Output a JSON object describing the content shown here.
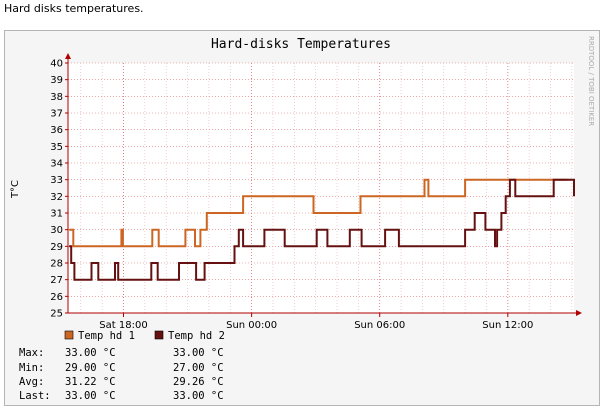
{
  "page": {
    "caption": "Hard disks temperatures."
  },
  "chart_data": {
    "type": "line",
    "title": "Hard-disks Temperatures",
    "ylabel": "T°C",
    "watermark": "RRDTOOL / TOBI OETIKER",
    "ylim": [
      25,
      40
    ],
    "yticks": [
      "25",
      "26",
      "27",
      "28",
      "29",
      "30",
      "31",
      "32",
      "33",
      "34",
      "35",
      "36",
      "37",
      "38",
      "39",
      "40"
    ],
    "xlim": [
      15.4,
      39.1
    ],
    "xticks": [
      {
        "x": 18,
        "label": "Sat 18:00"
      },
      {
        "x": 24,
        "label": "Sun 00:00"
      },
      {
        "x": 30,
        "label": "Sun 06:00"
      },
      {
        "x": 36,
        "label": "Sun 12:00"
      }
    ],
    "grid": true,
    "legend_position": "bottom",
    "colors": {
      "hd1": "#cc6622",
      "hd2": "#661111",
      "grid_minor": "#e8b0b0",
      "grid_major": "#e07070",
      "axis": "#b00000"
    },
    "series": [
      {
        "name": "Temp hd 1",
        "color": "#cc6622",
        "points": [
          [
            15.45,
            30
          ],
          [
            15.65,
            30
          ],
          [
            15.65,
            29
          ],
          [
            17.9,
            29
          ],
          [
            17.9,
            30
          ],
          [
            17.97,
            30
          ],
          [
            17.97,
            29
          ],
          [
            19.35,
            29
          ],
          [
            19.35,
            30
          ],
          [
            19.65,
            30
          ],
          [
            19.65,
            29
          ],
          [
            20.9,
            29
          ],
          [
            20.9,
            30
          ],
          [
            21.35,
            30
          ],
          [
            21.35,
            29
          ],
          [
            21.6,
            29
          ],
          [
            21.6,
            30
          ],
          [
            21.9,
            30
          ],
          [
            21.9,
            31
          ],
          [
            23.6,
            31
          ],
          [
            23.6,
            32
          ],
          [
            26.9,
            32
          ],
          [
            26.9,
            31
          ],
          [
            29.1,
            31
          ],
          [
            29.1,
            32
          ],
          [
            32.1,
            32
          ],
          [
            32.1,
            33
          ],
          [
            32.28,
            33
          ],
          [
            32.28,
            32
          ],
          [
            34.0,
            32
          ],
          [
            34.0,
            33
          ],
          [
            38.8,
            33
          ]
        ]
      },
      {
        "name": "Temp hd 2",
        "color": "#661111",
        "points": [
          [
            15.45,
            29
          ],
          [
            15.55,
            29
          ],
          [
            15.55,
            28
          ],
          [
            15.7,
            28
          ],
          [
            15.7,
            27
          ],
          [
            16.5,
            27
          ],
          [
            16.5,
            28
          ],
          [
            16.82,
            28
          ],
          [
            16.82,
            27
          ],
          [
            17.6,
            27
          ],
          [
            17.6,
            28
          ],
          [
            17.75,
            28
          ],
          [
            17.75,
            27
          ],
          [
            19.3,
            27
          ],
          [
            19.3,
            28
          ],
          [
            19.6,
            28
          ],
          [
            19.6,
            27
          ],
          [
            20.6,
            27
          ],
          [
            20.6,
            28
          ],
          [
            21.4,
            28
          ],
          [
            21.4,
            27
          ],
          [
            21.8,
            27
          ],
          [
            21.8,
            28
          ],
          [
            23.2,
            28
          ],
          [
            23.2,
            29
          ],
          [
            23.4,
            29
          ],
          [
            23.4,
            30
          ],
          [
            23.6,
            30
          ],
          [
            23.6,
            29
          ],
          [
            24.6,
            29
          ],
          [
            24.6,
            30
          ],
          [
            25.55,
            30
          ],
          [
            25.55,
            29
          ],
          [
            27.05,
            29
          ],
          [
            27.05,
            30
          ],
          [
            27.55,
            30
          ],
          [
            27.55,
            29
          ],
          [
            28.6,
            29
          ],
          [
            28.6,
            30
          ],
          [
            29.15,
            30
          ],
          [
            29.15,
            29
          ],
          [
            30.25,
            29
          ],
          [
            30.25,
            30
          ],
          [
            30.9,
            30
          ],
          [
            30.9,
            29
          ],
          [
            34.0,
            29
          ],
          [
            34.0,
            30
          ],
          [
            34.45,
            30
          ],
          [
            34.45,
            31
          ],
          [
            34.95,
            31
          ],
          [
            34.95,
            30
          ],
          [
            35.4,
            30
          ],
          [
            35.4,
            29
          ],
          [
            35.5,
            29
          ],
          [
            35.5,
            30
          ],
          [
            35.7,
            30
          ],
          [
            35.7,
            31
          ],
          [
            35.9,
            31
          ],
          [
            35.9,
            32
          ],
          [
            36.1,
            32
          ],
          [
            36.1,
            33
          ],
          [
            36.35,
            33
          ],
          [
            36.35,
            32
          ],
          [
            38.15,
            32
          ],
          [
            38.15,
            33
          ],
          [
            39.45,
            33
          ],
          [
            39.45,
            32
          ],
          [
            39.7,
            32
          ],
          [
            39.7,
            33
          ],
          [
            39.9,
            33
          ]
        ]
      }
    ],
    "legend": [
      {
        "label": "Temp hd 1",
        "color": "#cc6622"
      },
      {
        "label": "Temp hd 2",
        "color": "#661111"
      }
    ],
    "stats": {
      "rows": [
        "Max:",
        "Min:",
        "Avg:",
        "Last:"
      ],
      "hd1": [
        "33.00 °C",
        "29.00 °C",
        "31.22 °C",
        "33.00 °C"
      ],
      "hd2": [
        "33.00 °C",
        "27.00 °C",
        "29.26 °C",
        "33.00 °C"
      ]
    }
  }
}
